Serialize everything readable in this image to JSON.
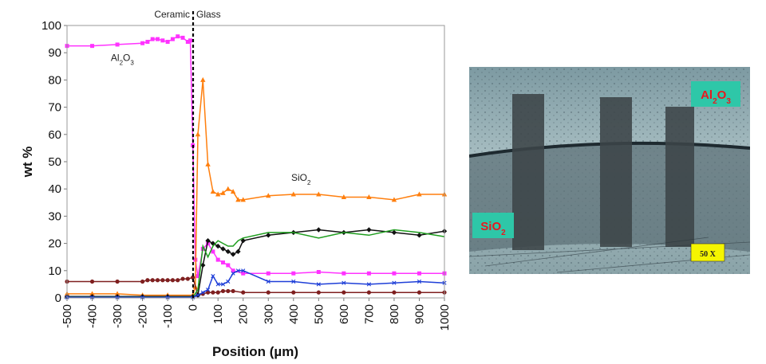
{
  "chart_data": {
    "type": "line",
    "xlabel": "Position (µm)",
    "ylabel": "wt %",
    "xlim": [
      -500,
      1000
    ],
    "ylim": [
      0,
      100
    ],
    "x_ticks": [
      "-500",
      "-400",
      "-300",
      "-200",
      "-100",
      "0",
      "100",
      "200",
      "300",
      "400",
      "500",
      "600",
      "700",
      "800",
      "900",
      "1000"
    ],
    "y_ticks": [
      "0",
      "10",
      "20",
      "30",
      "40",
      "50",
      "60",
      "70",
      "80",
      "90",
      "100"
    ],
    "grid": false,
    "interface": {
      "x": 0,
      "left_label": "Ceramic",
      "right_label": "Glass"
    },
    "annotations": [
      {
        "base": "Al",
        "sub1": "2",
        "mid": "O",
        "sub2": "3",
        "x": -280,
        "y": 87
      },
      {
        "base": "SiO",
        "sub1": "2",
        "mid": "",
        "sub2": "",
        "x": 430,
        "y": 43
      }
    ],
    "series": [
      {
        "color": "#ff33ff",
        "marker": "square",
        "x": [
          -500,
          -400,
          -300,
          -200,
          -180,
          -160,
          -140,
          -120,
          -100,
          -80,
          -60,
          -40,
          -20,
          -10,
          0,
          10,
          20,
          40,
          60,
          80,
          100,
          120,
          140,
          160,
          200,
          300,
          400,
          500,
          600,
          700,
          800,
          900,
          1000
        ],
        "y": [
          92.5,
          92.5,
          93,
          93.5,
          94,
          95,
          95,
          94.5,
          94,
          95,
          96,
          95.5,
          94,
          94.5,
          56,
          14,
          8,
          18,
          20,
          17,
          14,
          13,
          12,
          10,
          9,
          9,
          9,
          9.5,
          9,
          9,
          9,
          9,
          9
        ]
      },
      {
        "color": "#ff7f0e",
        "marker": "triangle",
        "x": [
          -500,
          -400,
          -300,
          -200,
          -100,
          0,
          10,
          20,
          40,
          60,
          80,
          100,
          120,
          140,
          160,
          180,
          200,
          300,
          400,
          500,
          600,
          700,
          800,
          900,
          1000
        ],
        "y": [
          1.5,
          1.5,
          1.5,
          1,
          1,
          1,
          4,
          60,
          80,
          49,
          39,
          38,
          38.5,
          40,
          39,
          36,
          36,
          37.5,
          38,
          38,
          37,
          37,
          36,
          38,
          38
        ]
      },
      {
        "color": "#7f1f1f",
        "marker": "circle",
        "x": [
          -500,
          -400,
          -300,
          -200,
          -180,
          -160,
          -140,
          -120,
          -100,
          -80,
          -60,
          -40,
          -20,
          0,
          20,
          40,
          60,
          80,
          100,
          120,
          140,
          160,
          200,
          300,
          400,
          500,
          600,
          700,
          800,
          900,
          1000
        ],
        "y": [
          6,
          6,
          6,
          6,
          6.5,
          6.5,
          6.5,
          6.5,
          6.5,
          6.5,
          6.5,
          7,
          7,
          7.5,
          1,
          1.5,
          2,
          2,
          2,
          2.5,
          2.5,
          2.5,
          2,
          2,
          2,
          2,
          2,
          2,
          2,
          2,
          2
        ]
      },
      {
        "color": "#111111",
        "marker": "diamond",
        "x": [
          -500,
          -400,
          -300,
          -200,
          -100,
          0,
          20,
          40,
          60,
          80,
          100,
          120,
          140,
          160,
          180,
          200,
          300,
          400,
          500,
          600,
          700,
          800,
          900,
          1000
        ],
        "y": [
          0.5,
          0.5,
          0.5,
          0.5,
          0.5,
          0.5,
          1,
          12,
          21,
          20,
          19,
          18,
          17,
          16,
          17,
          21,
          23,
          24,
          25,
          24,
          25,
          24,
          23,
          24.5
        ]
      },
      {
        "color": "#1f9e1f",
        "marker": "none",
        "x": [
          -500,
          -400,
          -300,
          -200,
          -100,
          0,
          20,
          40,
          60,
          80,
          100,
          120,
          140,
          160,
          180,
          200,
          300,
          400,
          500,
          600,
          700,
          800,
          900,
          1000
        ],
        "y": [
          0.3,
          0.3,
          0.3,
          0.3,
          0.3,
          0.3,
          3,
          19,
          15,
          19,
          21,
          20,
          19,
          19,
          21,
          22,
          24,
          24,
          22,
          24,
          23,
          25,
          24,
          22.5
        ]
      },
      {
        "color": "#1f3fd8",
        "marker": "x",
        "x": [
          -500,
          -400,
          -300,
          -200,
          -100,
          0,
          20,
          40,
          60,
          80,
          100,
          120,
          140,
          160,
          180,
          200,
          300,
          400,
          500,
          600,
          700,
          800,
          900,
          1000
        ],
        "y": [
          0.2,
          0.2,
          0.2,
          0.2,
          0.2,
          0.2,
          1,
          2,
          3,
          8,
          5,
          5,
          6,
          9,
          10,
          10,
          6,
          6,
          5,
          5.5,
          5,
          5.5,
          6,
          5.5
        ]
      }
    ]
  },
  "micrograph": {
    "labels": [
      {
        "base": "Al",
        "sub1": "2",
        "mid": "O",
        "sub2": "3"
      },
      {
        "base": "SiO",
        "sub1": "2",
        "mid": "",
        "sub2": ""
      }
    ],
    "magnification": "50 X",
    "label_bg": "#2ec7a8",
    "label_color": "#e8191f",
    "scale_bg": "#f5f500"
  }
}
